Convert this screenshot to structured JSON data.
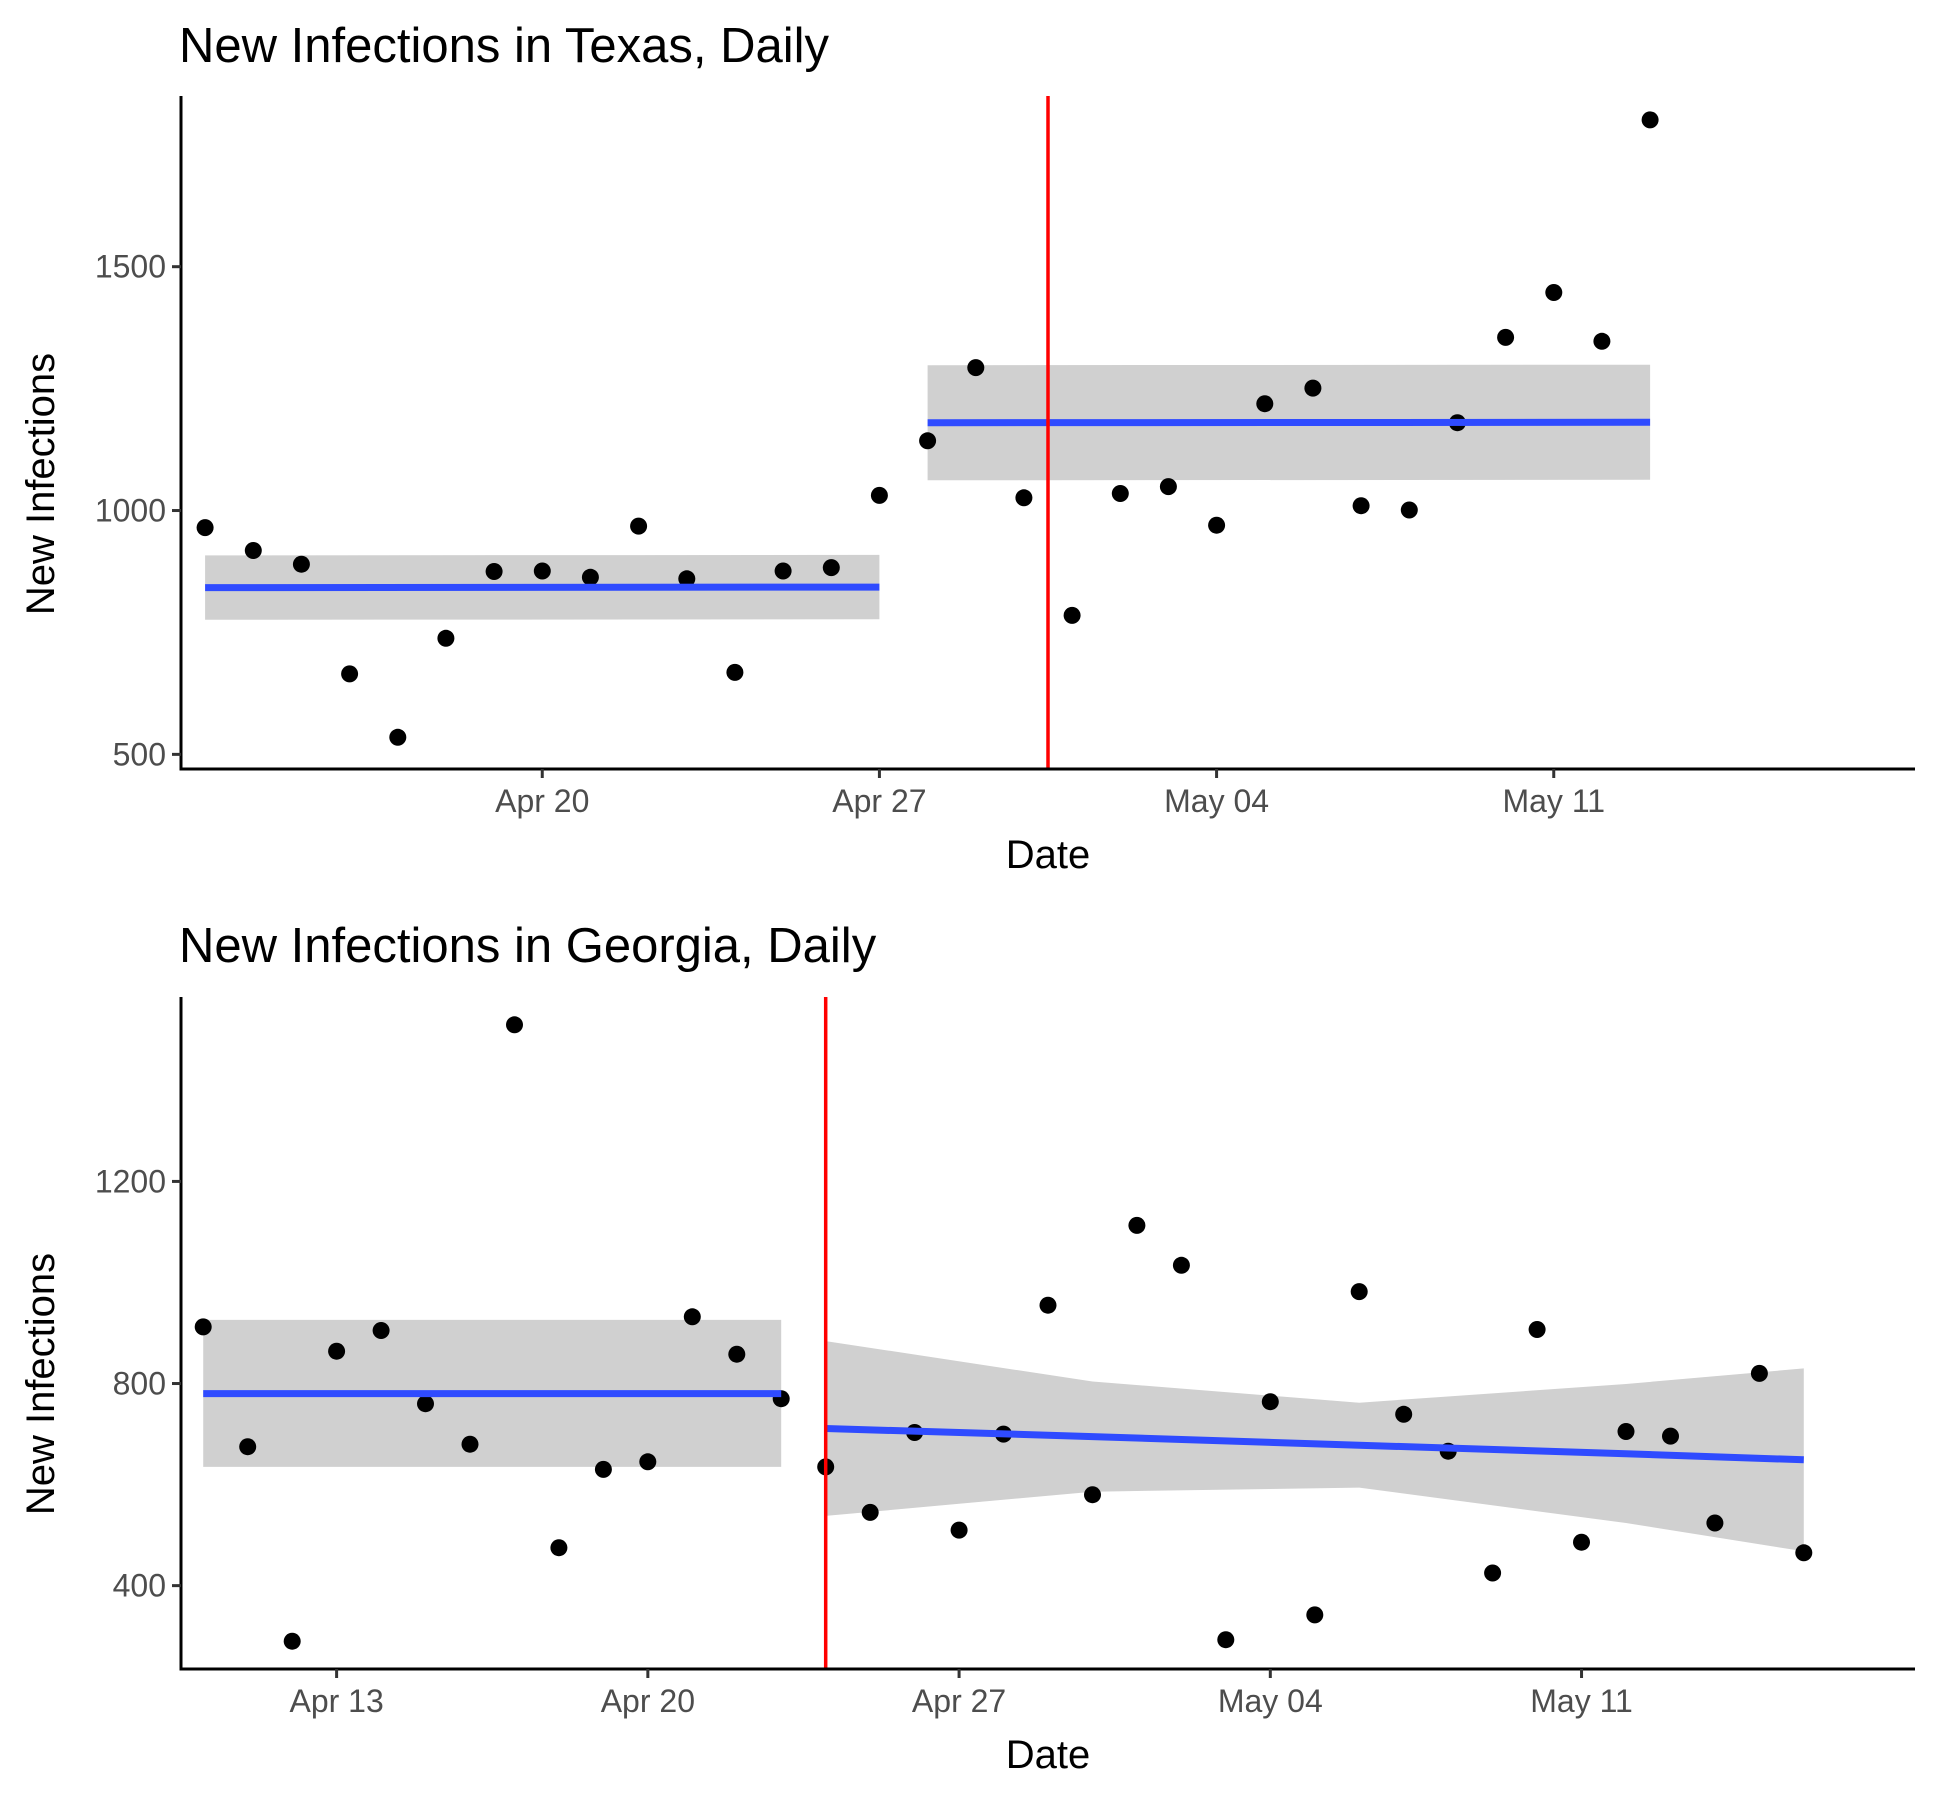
{
  "chart_data": [
    {
      "type": "scatter",
      "title": "New Infections in Texas, Daily",
      "xlabel": "Date",
      "ylabel": "New Infections",
      "x_ticks": [
        "Apr 20",
        "Apr 27",
        "May 04",
        "May 11"
      ],
      "x_tick_dates": [
        "2020-04-20",
        "2020-04-27",
        "2020-05-04",
        "2020-05-11"
      ],
      "y_ticks": [
        500,
        1000,
        1500
      ],
      "xlim": [
        "2020-04-12T12:00",
        "2020-05-18T12:00"
      ],
      "ylim": [
        470,
        1850
      ],
      "cutoff_date": "2020-04-30T12:00",
      "cutoff_color": "#ff0000",
      "point_color": "#000000",
      "fit_color": "#2f4bff",
      "band_color": "#d0d0d0",
      "grid": false,
      "legend": "none",
      "points": [
        [
          "2020-04-13",
          965
        ],
        [
          "2020-04-14",
          918
        ],
        [
          "2020-04-15",
          890
        ],
        [
          "2020-04-16",
          665
        ],
        [
          "2020-04-17",
          535
        ],
        [
          "2020-04-18",
          738
        ],
        [
          "2020-04-19",
          875
        ],
        [
          "2020-04-20",
          876
        ],
        [
          "2020-04-21",
          863
        ],
        [
          "2020-04-22",
          968
        ],
        [
          "2020-04-23",
          860
        ],
        [
          "2020-04-24",
          668
        ],
        [
          "2020-04-25",
          876
        ],
        [
          "2020-04-26",
          883
        ],
        [
          "2020-04-27",
          1031
        ],
        [
          "2020-04-28",
          1143
        ],
        [
          "2020-04-29",
          1293
        ],
        [
          "2020-04-30",
          1026
        ],
        [
          "2020-05-01",
          785
        ],
        [
          "2020-05-02",
          1035
        ],
        [
          "2020-05-03",
          1049
        ],
        [
          "2020-05-04",
          970
        ],
        [
          "2020-05-05",
          1219
        ],
        [
          "2020-05-06",
          1251
        ],
        [
          "2020-05-07",
          1010
        ],
        [
          "2020-05-08",
          1001
        ],
        [
          "2020-05-09",
          1180
        ],
        [
          "2020-05-10",
          1355
        ],
        [
          "2020-05-11",
          1447
        ],
        [
          "2020-05-12",
          1347
        ],
        [
          "2020-05-13",
          1801
        ]
      ],
      "fits": [
        {
          "x": [
            "2020-04-13",
            "2020-04-27"
          ],
          "y": [
            842,
            843
          ],
          "lower": [
            776,
            777
          ],
          "upper": [
            908,
            909
          ]
        },
        {
          "x": [
            "2020-04-28",
            "2020-05-13"
          ],
          "y": [
            1180,
            1181
          ],
          "lower": [
            1062,
            1063
          ],
          "upper": [
            1298,
            1299
          ]
        }
      ]
    },
    {
      "type": "scatter",
      "title": "New Infections in Georgia, Daily",
      "xlabel": "Date",
      "ylabel": "New Infections",
      "x_ticks": [
        "Apr 13",
        "Apr 20",
        "Apr 27",
        "May 04",
        "May 11"
      ],
      "x_tick_dates": [
        "2020-04-13",
        "2020-04-20",
        "2020-04-27",
        "2020-05-04",
        "2020-05-11"
      ],
      "y_ticks": [
        400,
        800,
        1200
      ],
      "xlim": [
        "2020-04-09T12:00",
        "2020-05-18T12:00"
      ],
      "ylim": [
        235,
        1565
      ],
      "cutoff_date": "2020-04-24T00:00",
      "cutoff_color": "#ff0000",
      "point_color": "#000000",
      "fit_color": "#2f4bff",
      "band_color": "#d0d0d0",
      "grid": false,
      "legend": "none",
      "points": [
        [
          "2020-04-10",
          912
        ],
        [
          "2020-04-11",
          675
        ],
        [
          "2020-04-12",
          290
        ],
        [
          "2020-04-13",
          864
        ],
        [
          "2020-04-14",
          905
        ],
        [
          "2020-04-15",
          760
        ],
        [
          "2020-04-16",
          680
        ],
        [
          "2020-04-17",
          1510
        ],
        [
          "2020-04-18",
          475
        ],
        [
          "2020-04-19",
          630
        ],
        [
          "2020-04-20",
          645
        ],
        [
          "2020-04-21",
          932
        ],
        [
          "2020-04-22",
          858
        ],
        [
          "2020-04-23",
          770
        ],
        [
          "2020-04-24",
          635
        ],
        [
          "2020-04-25",
          545
        ],
        [
          "2020-04-26",
          703
        ],
        [
          "2020-04-27",
          510
        ],
        [
          "2020-04-28",
          700
        ],
        [
          "2020-04-29",
          955
        ],
        [
          "2020-04-30",
          580
        ],
        [
          "2020-05-01",
          1113
        ],
        [
          "2020-05-02",
          1034
        ],
        [
          "2020-05-03",
          293
        ],
        [
          "2020-05-04",
          764
        ],
        [
          "2020-05-05",
          342
        ],
        [
          "2020-05-06",
          982
        ],
        [
          "2020-05-07",
          739
        ],
        [
          "2020-05-08",
          666
        ],
        [
          "2020-05-09",
          425
        ],
        [
          "2020-05-10",
          907
        ],
        [
          "2020-05-11",
          486
        ],
        [
          "2020-05-12",
          705
        ],
        [
          "2020-05-13",
          696
        ],
        [
          "2020-05-14",
          524
        ],
        [
          "2020-05-15",
          820
        ],
        [
          "2020-05-16",
          465
        ]
      ],
      "fits": [
        {
          "x": [
            "2020-04-10",
            "2020-04-23"
          ],
          "y": [
            780,
            780
          ],
          "lower": [
            635,
            635
          ],
          "upper": [
            926,
            926
          ]
        },
        {
          "x": [
            "2020-04-24",
            "2020-04-30",
            "2020-05-06",
            "2020-05-12",
            "2020-05-16"
          ],
          "y": [
            711,
            695,
            678,
            661,
            649
          ],
          "lower": [
            538,
            586,
            594,
            524,
            468
          ],
          "upper": [
            884,
            804,
            762,
            799,
            830
          ]
        }
      ]
    }
  ]
}
